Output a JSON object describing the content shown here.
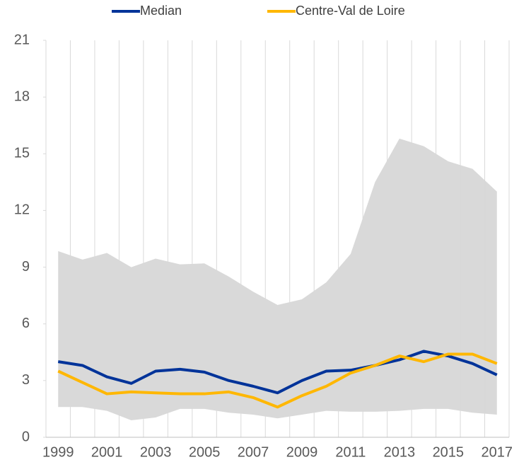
{
  "chart_data": {
    "type": "line",
    "categories": [
      "1999",
      null,
      "2001",
      null,
      "2003",
      null,
      "2005",
      null,
      "2007",
      null,
      "2009",
      null,
      "2011",
      null,
      "2013",
      null,
      "2015",
      null,
      "2017"
    ],
    "band": {
      "color": "#d9d9d9",
      "upper": [
        9.85,
        9.4,
        9.75,
        9.0,
        9.45,
        9.15,
        9.2,
        8.5,
        7.7,
        7.0,
        7.3,
        8.2,
        9.7,
        13.5,
        15.8,
        15.4,
        14.6,
        14.2,
        13.0
      ],
      "lower": [
        1.6,
        1.6,
        1.4,
        0.9,
        1.05,
        1.5,
        1.5,
        1.3,
        1.2,
        1.0,
        1.2,
        1.4,
        1.35,
        1.35,
        1.4,
        1.5,
        1.5,
        1.3,
        1.2
      ]
    },
    "series": [
      {
        "name": "Median",
        "color": "#003399",
        "values": [
          4.0,
          3.8,
          3.2,
          2.85,
          3.5,
          3.6,
          3.45,
          3.0,
          2.7,
          2.35,
          3.0,
          3.5,
          3.55,
          3.8,
          4.1,
          4.55,
          4.3,
          3.9,
          3.3
        ]
      },
      {
        "name": "Centre-Val de Loire",
        "color": "#ffb700",
        "values": [
          3.5,
          2.9,
          2.3,
          2.4,
          2.35,
          2.3,
          2.3,
          2.4,
          2.1,
          1.6,
          2.2,
          2.7,
          3.4,
          3.8,
          4.3,
          4.0,
          4.4,
          4.4,
          3.9
        ]
      }
    ],
    "ylim": [
      0,
      21
    ],
    "yticks": [
      0,
      3,
      6,
      9,
      12,
      15,
      18,
      21
    ]
  }
}
